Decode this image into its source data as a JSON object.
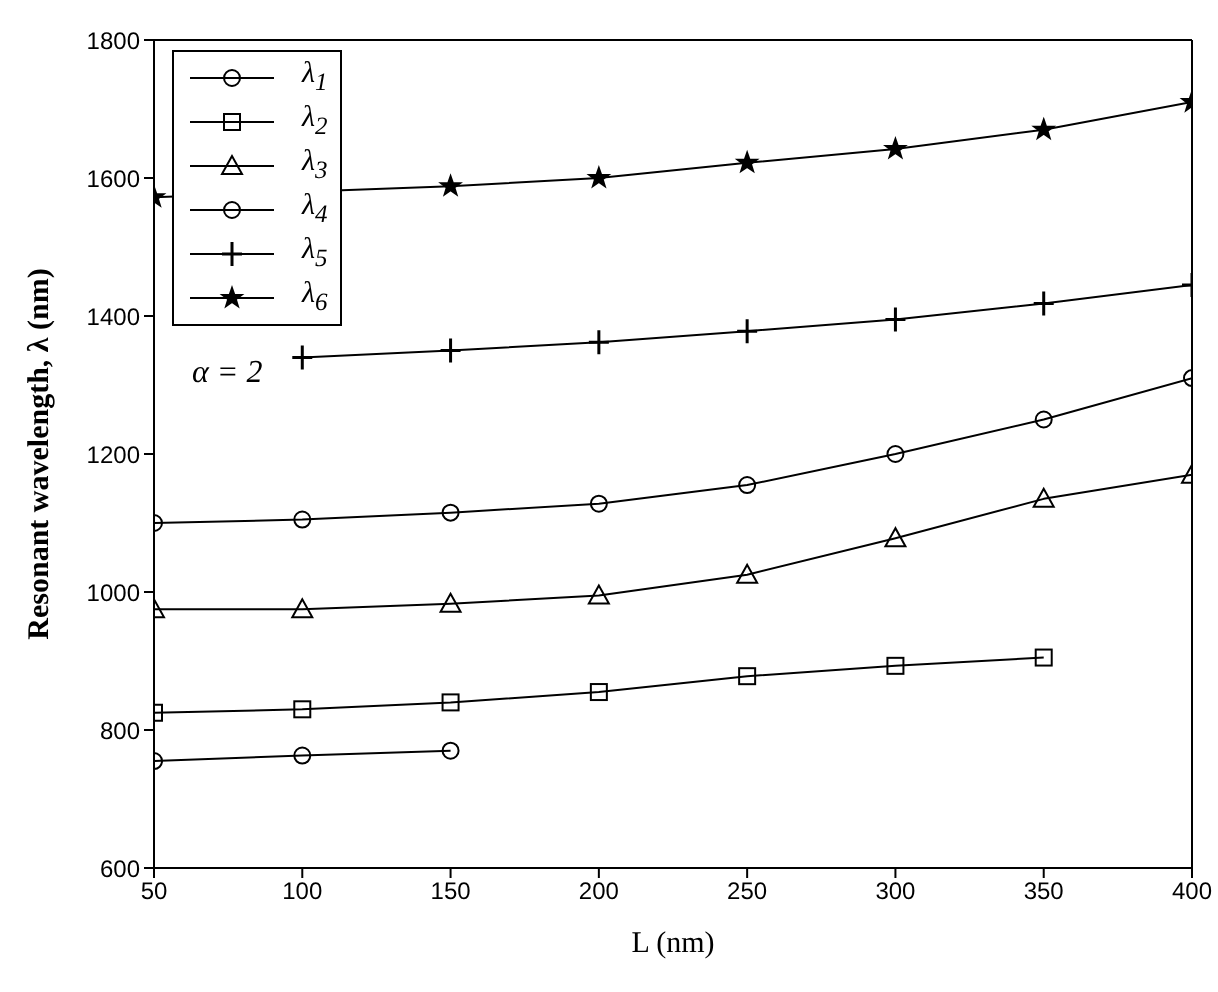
{
  "chart_data": {
    "type": "line",
    "xlabel": "L (nm)",
    "ylabel": "Resonant wavelength, λ (nm)",
    "x": [
      50,
      100,
      150,
      200,
      250,
      300,
      350,
      400
    ],
    "xlim": [
      50,
      400
    ],
    "xticks": [
      50,
      100,
      150,
      200,
      250,
      300,
      350,
      400
    ],
    "ylim": [
      600,
      1800
    ],
    "yticks": [
      600,
      800,
      1000,
      1200,
      1400,
      1600,
      1800
    ],
    "grid": false,
    "legend": "top left",
    "line_style": "solid",
    "annotations": [
      "α = 2"
    ],
    "series": [
      {
        "name": "λ$_{1}$",
        "color": "#000000",
        "marker": "circle",
        "values": [
          755,
          763,
          770,
          null,
          null,
          null,
          null,
          null
        ]
      },
      {
        "name": "λ$_{2}$",
        "color": "#000000",
        "marker": "square",
        "values": [
          825,
          830,
          840,
          855,
          878,
          893,
          905,
          null
        ]
      },
      {
        "name": "λ$_{3}$",
        "color": "#000000",
        "marker": "triangle",
        "values": [
          975,
          975,
          983,
          995,
          1025,
          1078,
          1135,
          1170
        ]
      },
      {
        "name": "λ$_{4}$",
        "color": "#000000",
        "marker": "circle",
        "values": [
          1100,
          1105,
          1115,
          1128,
          1155,
          1200,
          1250,
          1310
        ]
      },
      {
        "name": "λ$_{5}$",
        "color": "#000000",
        "marker": "cross",
        "values": [
          null,
          1340,
          1350,
          1362,
          1378,
          1395,
          1418,
          1445
        ]
      },
      {
        "name": "λ$_{6}$",
        "color": "#000000",
        "marker": "star",
        "values": [
          1572,
          null,
          1588,
          1600,
          1622,
          1642,
          1670,
          1710
        ]
      }
    ]
  }
}
